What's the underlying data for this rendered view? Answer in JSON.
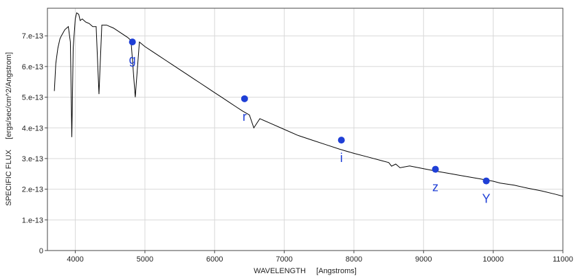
{
  "chart_data": {
    "type": "line",
    "xlabel": "WAVELENGTH     [Angstroms]",
    "ylabel": "SPECIFIC FLUX     [ergs/sec/cm^2/Angstrom]",
    "xlim": [
      3600,
      11000
    ],
    "ylim": [
      0,
      7.9e-13
    ],
    "x_ticks": [
      4000,
      5000,
      6000,
      7000,
      8000,
      9000,
      10000,
      11000
    ],
    "x_tick_labels": [
      "4000",
      "5000",
      "6000",
      "7000",
      "8000",
      "9000",
      "10000",
      "11000"
    ],
    "y_ticks": [
      0,
      1e-13,
      2e-13,
      3e-13,
      4e-13,
      5e-13,
      6e-13,
      7e-13
    ],
    "y_tick_labels": [
      "0",
      "1.e-13",
      "2.e-13",
      "3.e-13",
      "4.e-13",
      "5.e-13",
      "6.e-13",
      "7.e-13"
    ],
    "grid": true,
    "spectrum_color": "#000000",
    "point_color": "#1f3fd6",
    "spectrum": {
      "x": [
        3700,
        3720,
        3750,
        3780,
        3800,
        3850,
        3900,
        3930,
        3950,
        3970,
        4000,
        4020,
        4050,
        4070,
        4100,
        4150,
        4200,
        4250,
        4300,
        4340,
        4380,
        4450,
        4550,
        4650,
        4750,
        4800,
        4861,
        4920,
        5000,
        5100,
        5200,
        5300,
        5400,
        5500,
        5600,
        5700,
        5800,
        5900,
        6000,
        6100,
        6200,
        6300,
        6400,
        6500,
        6563,
        6650,
        6800,
        7000,
        7200,
        7400,
        7600,
        7800,
        8000,
        8200,
        8400,
        8500,
        8540,
        8600,
        8662,
        8800,
        9000,
        9200,
        9400,
        9600,
        9800,
        9900,
        10000,
        10100,
        10300,
        10500,
        10700,
        10900,
        11000
      ],
      "y": [
        5.2e-13,
        6.1e-13,
        6.6e-13,
        6.9e-13,
        7e-13,
        7.2e-13,
        7.3e-13,
        6.8e-13,
        3.7e-13,
        6.6e-13,
        7.55e-13,
        7.75e-13,
        7.7e-13,
        7.5e-13,
        7.55e-13,
        7.45e-13,
        7.4e-13,
        7.3e-13,
        7.3e-13,
        5.1e-13,
        7.35e-13,
        7.35e-13,
        7.25e-13,
        7.1e-13,
        6.95e-13,
        6.85e-13,
        5e-13,
        6.8e-13,
        6.65e-13,
        6.5e-13,
        6.35e-13,
        6.2e-13,
        6.05e-13,
        5.9e-13,
        5.75e-13,
        5.6e-13,
        5.45e-13,
        5.3e-13,
        5.15e-13,
        5e-13,
        4.85e-13,
        4.7e-13,
        4.55e-13,
        4.42e-13,
        4e-13,
        4.3e-13,
        4.15e-13,
        3.95e-13,
        3.75e-13,
        3.6e-13,
        3.45e-13,
        3.3e-13,
        3.17e-13,
        3.05e-13,
        2.93e-13,
        2.87e-13,
        2.75e-13,
        2.82e-13,
        2.7e-13,
        2.76e-13,
        2.67e-13,
        2.58e-13,
        2.5e-13,
        2.42e-13,
        2.34e-13,
        2.3e-13,
        2.26e-13,
        2.2e-13,
        2.13e-13,
        2.03e-13,
        1.94e-13,
        1.83e-13,
        1.77e-13
      ]
    },
    "band_points": [
      {
        "label": "g",
        "x": 4820,
        "y": 6.8e-13
      },
      {
        "label": "r",
        "x": 6430,
        "y": 4.95e-13
      },
      {
        "label": "i",
        "x": 7820,
        "y": 3.6e-13
      },
      {
        "label": "z",
        "x": 9170,
        "y": 2.65e-13
      },
      {
        "label": "Y",
        "x": 9900,
        "y": 2.27e-13
      }
    ]
  }
}
